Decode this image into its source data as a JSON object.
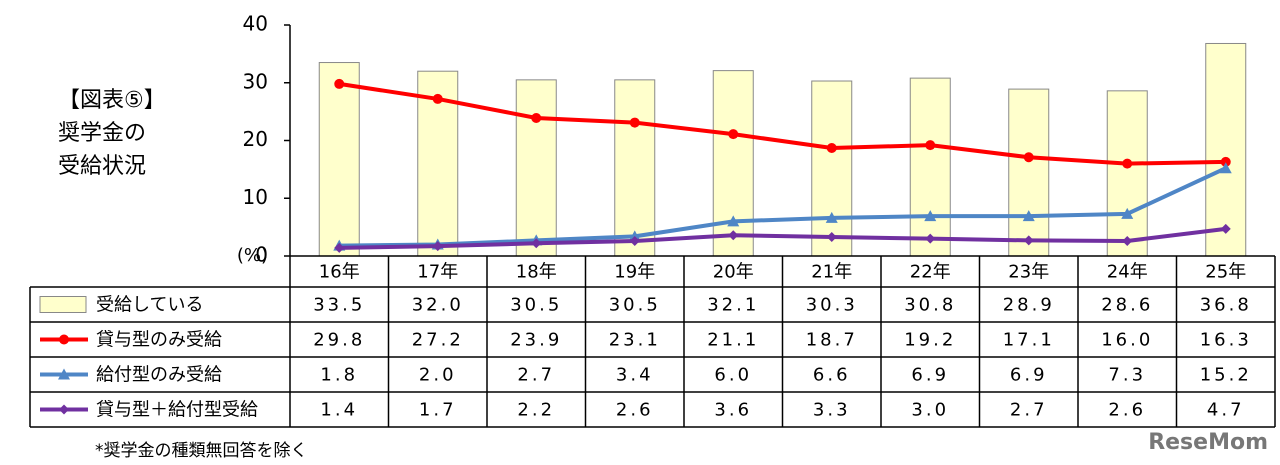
{
  "chart_data": {
    "type": "combo",
    "title_lines": [
      "【図表⑤】",
      "奨学金の",
      "受給状況"
    ],
    "y_label": "(%)",
    "footnote": "*奨学金の種類無回答を除く",
    "watermark": "ReseMom",
    "categories": [
      "16年",
      "17年",
      "18年",
      "19年",
      "20年",
      "21年",
      "22年",
      "23年",
      "24年",
      "25年"
    ],
    "ylim": [
      0,
      40
    ],
    "yticks": [
      0,
      10,
      20,
      30,
      40
    ],
    "series": [
      {
        "name": "受給している",
        "type": "bar",
        "color": "#ffffcc",
        "values": [
          33.5,
          32.0,
          30.5,
          30.5,
          32.1,
          30.3,
          30.8,
          28.9,
          28.6,
          36.8
        ],
        "value_labels": [
          "33.5",
          "32.0",
          "30.5",
          "30.5",
          "32.1",
          "30.3",
          "30.8",
          "28.9",
          "28.6",
          "36.8"
        ]
      },
      {
        "name": "貸与型のみ受給",
        "type": "line",
        "marker": "circle",
        "color": "#ff0000",
        "values": [
          29.8,
          27.2,
          23.9,
          23.1,
          21.1,
          18.7,
          19.2,
          17.1,
          16.0,
          16.3
        ],
        "value_labels": [
          "29.8",
          "27.2",
          "23.9",
          "23.1",
          "21.1",
          "18.7",
          "19.2",
          "17.1",
          "16.0",
          "16.3"
        ]
      },
      {
        "name": "給付型のみ受給",
        "type": "line",
        "marker": "triangle",
        "color": "#4f86c6",
        "values": [
          1.8,
          2.0,
          2.7,
          3.4,
          6.0,
          6.6,
          6.9,
          6.9,
          7.3,
          15.2
        ],
        "value_labels": [
          "1.8",
          "2.0",
          "2.7",
          "3.4",
          "6.0",
          "6.6",
          "6.9",
          "6.9",
          "7.3",
          "15.2"
        ]
      },
      {
        "name": "貸与型＋給付型受給",
        "type": "line",
        "marker": "diamond",
        "color": "#7030a0",
        "values": [
          1.4,
          1.7,
          2.2,
          2.6,
          3.6,
          3.3,
          3.0,
          2.7,
          2.6,
          4.7
        ],
        "value_labels": [
          "1.4",
          "1.7",
          "2.2",
          "2.6",
          "3.6",
          "3.3",
          "3.0",
          "2.7",
          "2.6",
          "4.7"
        ]
      }
    ]
  }
}
